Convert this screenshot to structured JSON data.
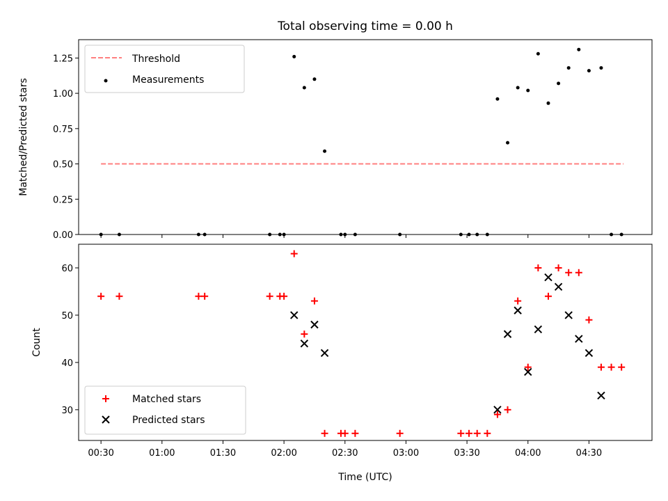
{
  "chart_data": [
    {
      "type": "scatter",
      "title": "Total observing time = 0.00 h",
      "xlabel": "",
      "ylabel": "Matched/Predicted stars",
      "xlim": [
        "00:19",
        "05:01"
      ],
      "ylim": [
        0,
        1.38
      ],
      "yticks": [
        "0.00",
        "0.25",
        "0.50",
        "0.75",
        "1.00",
        "1.25"
      ],
      "grid": false,
      "legend_position": "top-left",
      "series": [
        {
          "name": "Threshold",
          "kind": "line",
          "style": "dashed",
          "color": "#ff7f7f",
          "x": [
            "00:30",
            "04:47"
          ],
          "y": [
            0.5,
            0.5
          ]
        },
        {
          "name": "Measurements",
          "kind": "scatter",
          "marker": "dot",
          "color": "#000000",
          "x": [
            "00:30",
            "00:39",
            "01:18",
            "01:21",
            "01:53",
            "01:58",
            "02:00",
            "02:05",
            "02:10",
            "02:15",
            "02:20",
            "02:28",
            "02:30",
            "02:35",
            "02:57",
            "03:27",
            "03:31",
            "03:35",
            "03:40",
            "03:45",
            "03:50",
            "03:55",
            "04:00",
            "04:05",
            "04:10",
            "04:15",
            "04:20",
            "04:25",
            "04:30",
            "04:36",
            "04:41",
            "04:46"
          ],
          "y": [
            0,
            0,
            0,
            0,
            0,
            0,
            0,
            1.26,
            1.04,
            1.1,
            0.59,
            0,
            0,
            0,
            0,
            0,
            0,
            0,
            0,
            0.96,
            0.65,
            1.04,
            1.02,
            1.28,
            0.93,
            1.07,
            1.18,
            1.31,
            1.16,
            1.18,
            0,
            0
          ]
        }
      ]
    },
    {
      "type": "scatter",
      "title": "",
      "xlabel": "Time (UTC)",
      "ylabel": "Count",
      "xlim": [
        "00:19",
        "05:01"
      ],
      "ylim": [
        23.5,
        65
      ],
      "xticks": [
        "00:30",
        "01:00",
        "01:30",
        "02:00",
        "02:30",
        "03:00",
        "03:30",
        "04:00",
        "04:30"
      ],
      "yticks": [
        "30",
        "40",
        "50",
        "60"
      ],
      "grid": false,
      "legend_position": "bottom-left",
      "series": [
        {
          "name": "Matched stars",
          "kind": "scatter",
          "marker": "plus",
          "color": "#ff0000",
          "x": [
            "00:30",
            "00:39",
            "01:18",
            "01:21",
            "01:53",
            "01:58",
            "02:00",
            "02:05",
            "02:10",
            "02:15",
            "02:20",
            "02:28",
            "02:30",
            "02:35",
            "02:57",
            "03:27",
            "03:31",
            "03:35",
            "03:40",
            "03:45",
            "03:50",
            "03:55",
            "04:00",
            "04:05",
            "04:10",
            "04:15",
            "04:20",
            "04:25",
            "04:30",
            "04:36",
            "04:41",
            "04:46"
          ],
          "y": [
            54,
            54,
            54,
            54,
            54,
            54,
            54,
            63,
            46,
            53,
            25,
            25,
            25,
            25,
            25,
            25,
            25,
            25,
            25,
            29,
            30,
            53,
            39,
            60,
            54,
            60,
            59,
            59,
            49,
            39,
            39,
            39
          ]
        },
        {
          "name": "Predicted stars",
          "kind": "scatter",
          "marker": "x",
          "color": "#000000",
          "x": [
            "02:05",
            "02:10",
            "02:15",
            "02:20",
            "03:45",
            "03:50",
            "03:55",
            "04:00",
            "04:05",
            "04:10",
            "04:15",
            "04:20",
            "04:25",
            "04:30",
            "04:36"
          ],
          "y": [
            50,
            44,
            48,
            42,
            30,
            46,
            51,
            38,
            47,
            58,
            56,
            50,
            45,
            42,
            33
          ]
        }
      ]
    }
  ]
}
